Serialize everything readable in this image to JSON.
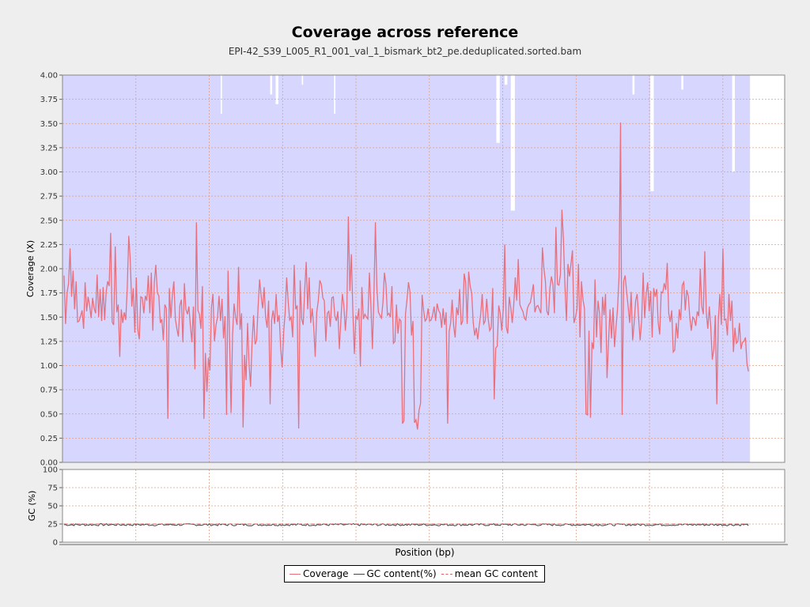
{
  "chart_data": [
    {
      "type": "line",
      "title": "Coverage across reference",
      "subtitle": "EPI-42_S39_L005_R1_001_val_1_bismark_bt2_pe.deduplicated.sorted.bam",
      "ylabel": "Coverage (X)",
      "ylim": [
        0,
        4
      ],
      "yticks": [
        "0.00",
        "0.25",
        "0.50",
        "0.75",
        "1.00",
        "1.25",
        "1.50",
        "1.75",
        "2.00",
        "2.25",
        "2.50",
        "2.75",
        "3.00",
        "3.25",
        "3.50",
        "3.75",
        "4.00"
      ],
      "series": [
        {
          "name": "Coverage",
          "color": "#e8707c",
          "values": [
            1.93,
            1.43,
            1.75,
            1.85,
            2.21,
            1.71,
            1.98,
            1.58,
            1.87,
            1.45,
            1.46,
            1.51,
            1.57,
            1.38,
            1.86,
            1.56,
            1.71,
            1.62,
            1.49,
            1.7,
            1.59,
            1.54,
            1.94,
            1.5,
            1.79,
            1.46,
            1.81,
            1.47,
            1.76,
            1.87,
            1.82,
            2.37,
            1.45,
            1.42,
            2.23,
            1.55,
            1.63,
            1.09,
            1.58,
            1.44,
            1.55,
            1.47,
            1.81,
            2.34,
            2.09,
            1.61,
            1.8,
            1.34,
            1.91,
            1.37,
            1.27,
            1.71,
            1.7,
            1.54,
            1.72,
            1.67,
            1.93,
            1.54,
            1.96,
            1.36,
            1.86,
            2.04,
            1.75,
            1.72,
            1.44,
            1.48,
            1.26,
            1.63,
            1.59,
            0.45,
            1.8,
            1.49,
            1.73,
            1.87,
            1.48,
            1.38,
            1.3,
            1.62,
            1.68,
            1.24,
            1.85,
            1.58,
            1.53,
            1.61,
            1.41,
            1.24,
            1.61,
            0.96,
            2.48,
            1.57,
            1.53,
            1.38,
            1.82,
            0.45,
            1.13,
            0.73,
            1.08,
            0.95,
            1.6,
            1.74,
            1.25,
            1.42,
            1.5,
            1.72,
            1.46,
            1.69,
            1.28,
            1.51,
            0.49,
            1.98,
            1.28,
            0.51,
            1.32,
            1.64,
            1.5,
            1.42,
            2.02,
            1.37,
            1.54,
            0.36,
            1.11,
            0.85,
            1.44,
            1.01,
            0.78,
            1.25,
            1.52,
            1.22,
            1.26,
            1.61,
            1.89,
            1.72,
            1.59,
            1.81,
            1.5,
            1.39,
            1.67,
            0.6,
            1.47,
            1.57,
            1.43,
            1.74,
            1.45,
            1.52,
            1.19,
            0.98,
            1.34,
            1.55,
            1.91,
            1.66,
            1.47,
            1.5,
            1.29,
            2.04,
            1.58,
            1.62,
            0.35,
            1.88,
            1.48,
            1.42,
            1.78,
            2.07,
            1.58,
            1.91,
            1.44,
            1.59,
            1.4,
            1.09,
            1.55,
            1.67,
            1.88,
            1.84,
            1.7,
            1.67,
            1.25,
            1.54,
            1.56,
            1.4,
            1.7,
            1.71,
            1.51,
            1.46,
            1.56,
            1.17,
            1.46,
            1.74,
            1.62,
            1.36,
            1.58,
            2.54,
            1.77,
            2.15,
            1.55,
            1.12,
            1.51,
            1.48,
            1.59,
            0.99,
            1.81,
            1.48,
            1.53,
            1.5,
            1.48,
            1.96,
            1.62,
            1.17,
            1.72,
            2.48,
            1.79,
            1.55,
            1.52,
            1.49,
            1.65,
            1.96,
            1.84,
            1.52,
            1.54,
            1.5,
            1.82,
            1.23,
            1.25,
            1.63,
            1.33,
            1.48,
            1.46,
            0.4,
            0.43,
            1.53,
            1.68,
            1.86,
            1.76,
            1.31,
            1.46,
            0.41,
            0.44,
            0.34,
            0.54,
            0.61,
            1.73,
            1.57,
            1.46,
            1.48,
            1.59,
            1.46,
            1.47,
            1.52,
            1.61,
            1.46,
            1.64,
            1.57,
            1.54,
            1.39,
            1.59,
            1.42,
            1.55,
            0.4,
            1.35,
            1.44,
            1.68,
            1.41,
            1.29,
            1.6,
            1.52,
            1.79,
            1.42,
            1.46,
            1.95,
            1.86,
            1.43,
            1.97,
            1.82,
            1.75,
            1.45,
            1.31,
            1.39,
            1.27,
            1.41,
            1.53,
            1.74,
            1.43,
            1.46,
            1.69,
            1.48,
            1.36,
            1.39,
            1.8,
            0.65,
            1.18,
            1.2,
            1.62,
            1.54,
            1.36,
            1.58,
            2.25,
            1.4,
            1.33,
            1.71,
            1.6,
            1.44,
            1.63,
            1.91,
            1.67,
            2.1,
            1.63,
            1.59,
            1.56,
            1.49,
            1.47,
            1.59,
            1.63,
            1.65,
            1.74,
            1.84,
            1.55,
            1.61,
            1.62,
            1.58,
            1.54,
            2.22,
            2.0,
            1.87,
            1.56,
            1.52,
            1.8,
            1.92,
            1.84,
            1.54,
            2.43,
            1.84,
            1.83,
            1.94,
            2.61,
            2.3,
            1.82,
            1.46,
            2.05,
            1.92,
            2.05,
            2.19,
            1.44,
            1.5,
            1.58,
            2.05,
            1.29,
            1.87,
            1.68,
            1.59,
            0.5,
            0.49,
            1.36,
            0.46,
            1.24,
            1.17,
            1.89,
            1.29,
            1.67,
            1.54,
            1.13,
            1.71,
            1.52,
            1.74,
            0.87,
            1.24,
            1.58,
            1.28,
            1.6,
            1.19,
            1.4,
            1.59,
            1.92,
            3.51,
            0.49,
            1.87,
            1.93,
            1.76,
            1.61,
            1.44,
            1.76,
            1.26,
            1.44,
            1.67,
            1.74,
            1.48,
            1.26,
            1.47,
            1.96,
            1.49,
            1.74,
            1.86,
            1.56,
            1.77,
            1.29,
            1.8,
            1.71,
            1.79,
            1.44,
            1.32,
            1.76,
            1.75,
            1.85,
            1.78,
            2.06,
            1.54,
            1.45,
            1.57,
            1.14,
            1.16,
            1.44,
            1.28,
            1.58,
            1.47,
            1.83,
            1.86,
            1.57,
            1.78,
            1.72,
            1.5,
            1.36,
            1.5,
            1.48,
            1.41,
            1.56,
            1.51,
            2.0,
            1.61,
            1.53,
            2.18,
            1.55,
            1.38,
            1.61,
            1.39,
            1.06,
            1.17,
            1.52,
            0.6,
            1.47,
            1.74,
            1.42,
            2.21,
            1.47,
            1.48,
            1.31,
            1.74,
            1.46,
            1.67,
            1.14,
            1.39,
            1.23,
            1.25,
            1.44,
            1.17,
            1.24,
            1.25,
            1.29,
            1.02,
            0.94
          ]
        }
      ],
      "band_color": "#d6d6ff",
      "band_gaps_top": [
        [
          0.23,
          0.002,
          3.6
        ],
        [
          0.302,
          0.003,
          3.8
        ],
        [
          0.31,
          0.004,
          3.7
        ],
        [
          0.348,
          0.002,
          3.9
        ],
        [
          0.395,
          0.002,
          3.6
        ],
        [
          0.631,
          0.005,
          3.3
        ],
        [
          0.643,
          0.004,
          3.9
        ],
        [
          0.652,
          0.006,
          2.6
        ],
        [
          0.829,
          0.003,
          3.8
        ],
        [
          0.855,
          0.005,
          2.8
        ],
        [
          0.9,
          0.003,
          3.85
        ],
        [
          0.974,
          0.004,
          3.0
        ]
      ]
    },
    {
      "type": "line",
      "ylabel": "GC (%)",
      "ylim": [
        0,
        100
      ],
      "yticks": [
        "0",
        "25",
        "50",
        "75",
        "100"
      ],
      "series": [
        {
          "name": "GC content(%)",
          "color": "#444444",
          "mean": 24
        },
        {
          "name": "mean GC content",
          "color": "#e06060",
          "value": 25
        }
      ]
    }
  ],
  "xlabel": "Position (bp)",
  "legend": [
    {
      "label": "Coverage",
      "color": "#e8707c",
      "style": "solid"
    },
    {
      "label": "GC content(%)",
      "color": "#444444",
      "style": "solid"
    },
    {
      "label": "mean GC content",
      "color": "#e06060",
      "style": "dashed"
    }
  ]
}
